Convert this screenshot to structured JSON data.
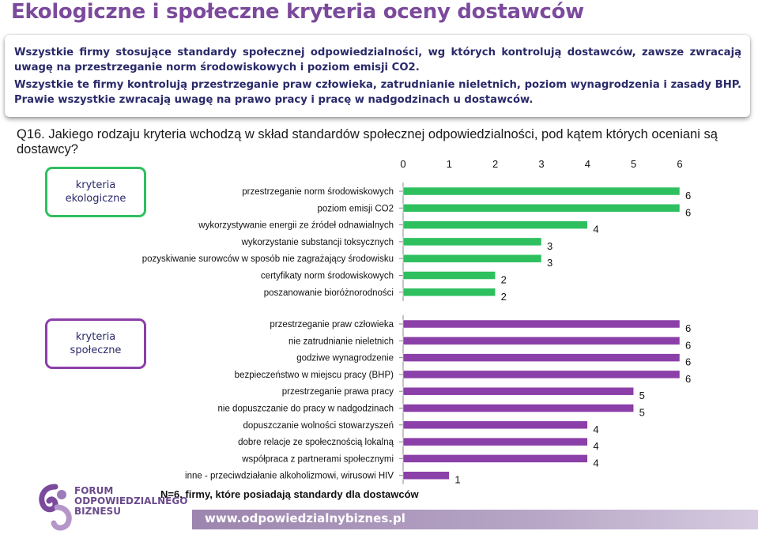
{
  "page": {
    "title": "Ekologiczne i społeczne kryteria oceny dostawców",
    "summary_line1": "Wszystkie firmy stosujące standardy społecznej odpowiedzialności, wg których kontrolują dostawców, zawsze zwracają uwagę na przestrzeganie norm środowiskowych i poziom emisji CO2.",
    "summary_line2": "Wszystkie te firmy kontrolują przestrzeganie praw człowieka, zatrudnianie nieletnich, poziom wynagrodzenia i zasady BHP. Prawie wszystkie zwracają uwagę na prawo pracy i pracę w nadgodzinach u dostawców.",
    "question": "Q16. Jakiego rodzaju kryteria wchodzą w skład standardów społecznej odpowiedzialności, pod kątem których oceniani są dostawcy?",
    "category_eco_line1": "kryteria",
    "category_eco_line2": "ekologiczne",
    "category_soc_line1": "kryteria",
    "category_soc_line2": "społeczne",
    "footnote": "N=6, firmy, które posiadają standardy  dla dostawców",
    "banner_url": "www.odpowiedzialnybiznes.pl",
    "logo_line1": "FORUM",
    "logo_line2": "ODPOWIEDZIALNEGO",
    "logo_line3": "BIZNESU"
  },
  "colors": {
    "title": "#7b4a9c",
    "eco_bar": "#2ec05f",
    "soc_bar": "#8b3fa8"
  },
  "chart_data": {
    "type": "bar",
    "orientation": "horizontal",
    "xlim": [
      0,
      6
    ],
    "xticks": [
      0,
      1,
      2,
      3,
      4,
      5,
      6
    ],
    "grid": false,
    "groups": [
      {
        "name": "kryteria ekologiczne",
        "color": "#2ec05f",
        "categories": [
          "przestrzeganie norm środowiskowych",
          "poziom emisji CO2",
          "wykorzystywanie energii ze źródeł odnawialnych",
          "wykorzystanie substancji toksycznych",
          "pozyskiwanie surowców w sposób nie zagrażający środowisku",
          "certyfikaty norm środowiskowych",
          "poszanowanie bioróżnorodności"
        ],
        "values": [
          6,
          6,
          4,
          3,
          3,
          2,
          2
        ]
      },
      {
        "name": "kryteria społeczne",
        "color": "#8b3fa8",
        "categories": [
          "przestrzeganie praw człowieka",
          "nie zatrudnianie nieletnich",
          "godziwe wynagrodzenie",
          "bezpieczeństwo w miejscu pracy (BHP)",
          "przestrzeganie prawa pracy",
          "nie dopuszczanie do pracy w nadgodzinach",
          "dopuszczanie wolności stowarzyszeń",
          "dobre relacje ze społecznością lokalną",
          "współpraca z partnerami społecznymi",
          "inne - przeciwdziałanie alkoholizmowi, wirusowi HIV"
        ],
        "values": [
          6,
          6,
          6,
          6,
          5,
          5,
          4,
          4,
          4,
          1
        ]
      }
    ]
  }
}
